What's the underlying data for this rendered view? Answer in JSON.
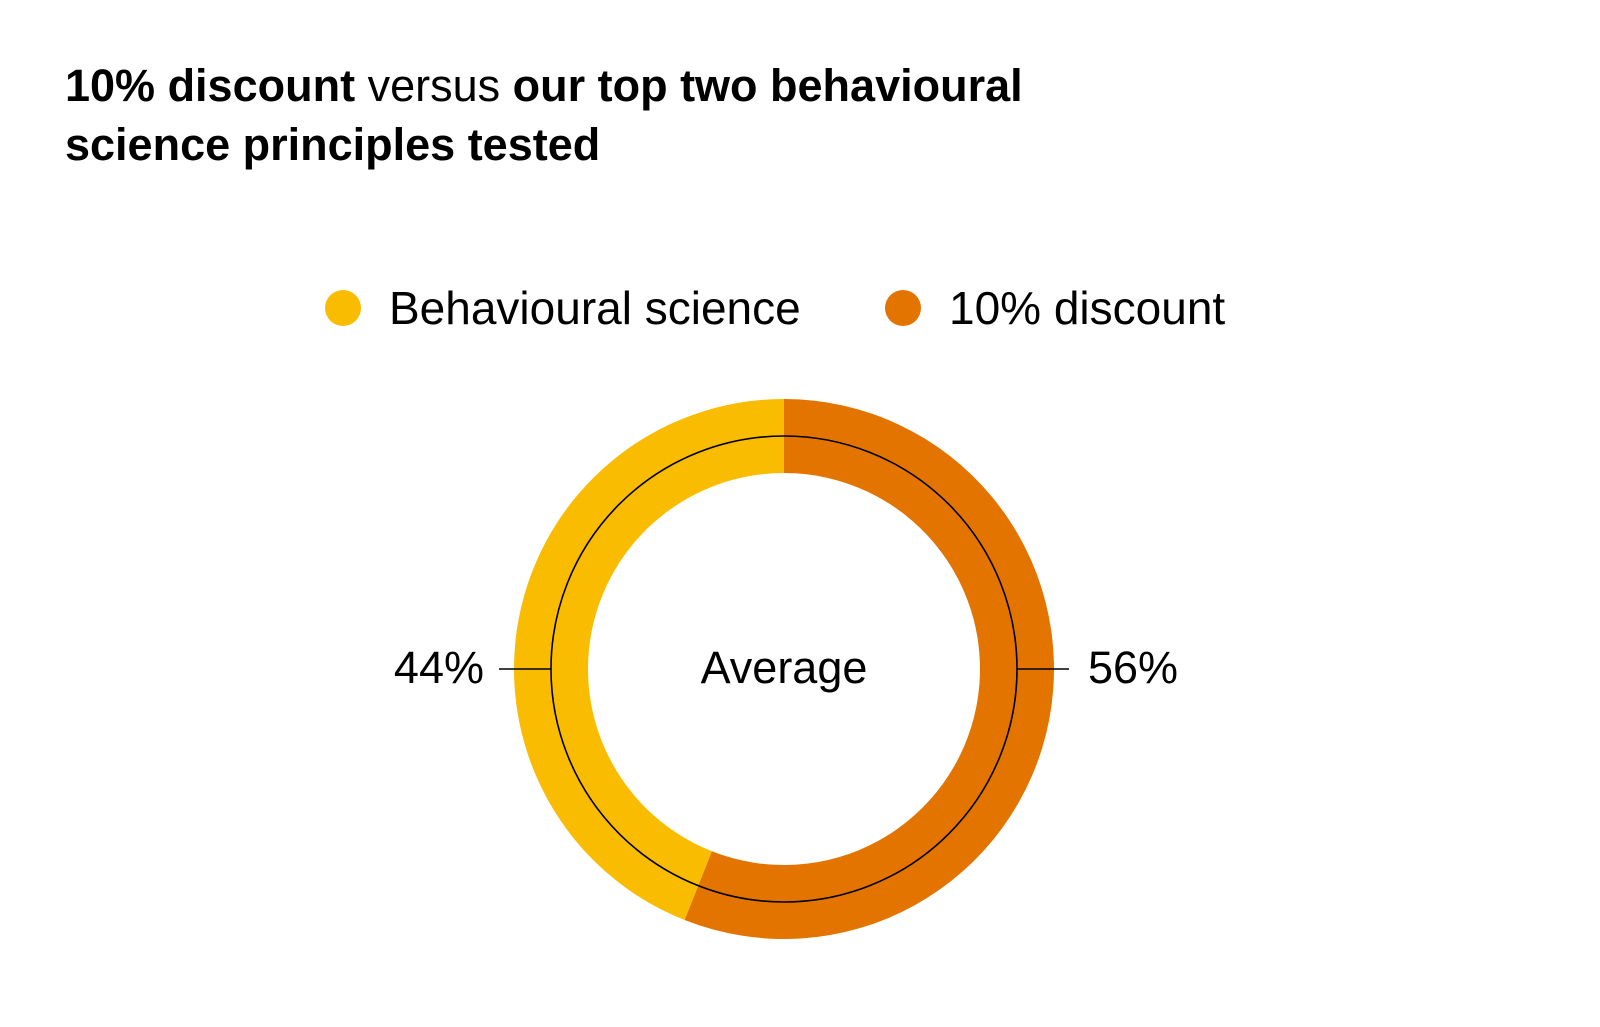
{
  "title": {
    "part1": "10% discount",
    "part2": " versus ",
    "part3": "our top two behavioural science principles tested"
  },
  "chart_data": {
    "type": "pie",
    "donut": true,
    "categories": [
      "Behavioural science",
      "10% discount"
    ],
    "values": [
      44,
      56
    ],
    "value_labels": [
      "44%",
      "56%"
    ],
    "colors": [
      "#F9BC00",
      "#E37400"
    ],
    "center_label": "Average",
    "legend": {
      "placement": "top-center",
      "entries": [
        "Behavioural science",
        "10% discount"
      ]
    }
  }
}
